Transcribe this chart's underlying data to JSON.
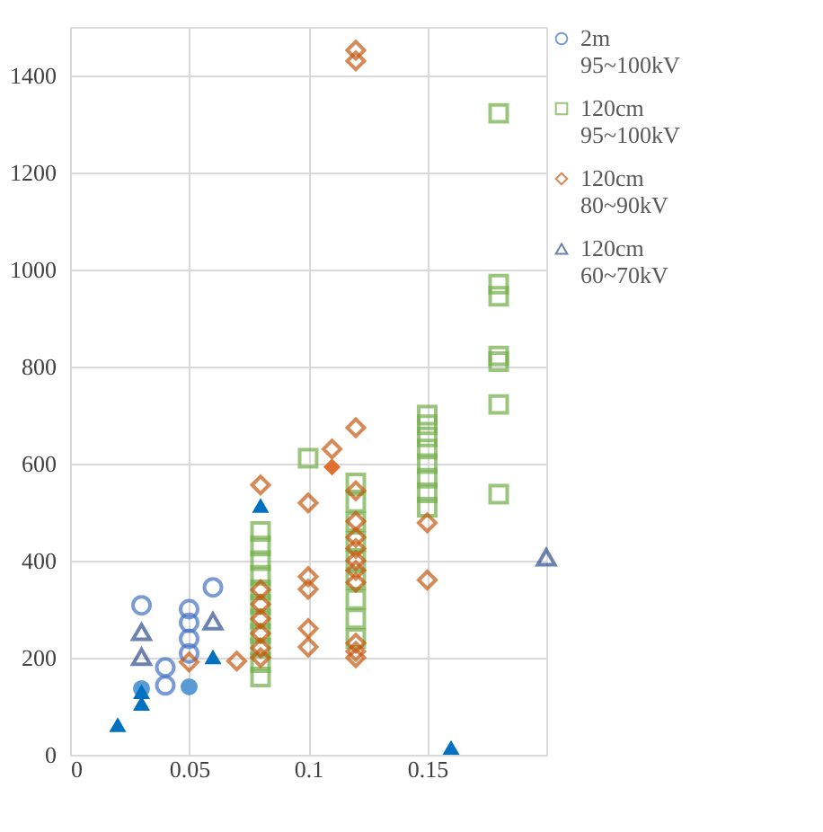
{
  "chart_data": {
    "type": "scatter",
    "xlim": [
      0,
      0.2
    ],
    "xticks": [
      0,
      0.05,
      0.1,
      0.15
    ],
    "ylim": [
      0,
      1500
    ],
    "yticks": [
      0,
      200,
      400,
      600,
      800,
      1000,
      1200,
      1400
    ],
    "grid": true,
    "legend": "top right",
    "series": [
      {
        "name": "2m 95~100kV",
        "color": "#4472c4",
        "marker": "circle",
        "x": [
          0.03,
          0.04,
          0.04,
          0.05,
          0.05,
          0.05,
          0.05,
          0.06
        ],
        "values": [
          308,
          180,
          143,
          300,
          272,
          239,
          209,
          345
        ]
      },
      {
        "name": "120cm 95~100kV",
        "color": "#70ad47",
        "marker": "square",
        "x": [
          0.08,
          0.08,
          0.08,
          0.08,
          0.08,
          0.08,
          0.08,
          0.08,
          0.08,
          0.08,
          0.08,
          0.1,
          0.12,
          0.12,
          0.12,
          0.12,
          0.12,
          0.12,
          0.12,
          0.12,
          0.12,
          0.15,
          0.15,
          0.15,
          0.15,
          0.15,
          0.15,
          0.15,
          0.15,
          0.18,
          0.18,
          0.18,
          0.18,
          0.18,
          0.18,
          0.18
        ],
        "values": [
          460,
          430,
          400,
          370,
          340,
          310,
          280,
          250,
          220,
          190,
          160,
          611,
          560,
          520,
          480,
          440,
          400,
          360,
          320,
          280,
          240,
          700,
          680,
          655,
          630,
          600,
          570,
          540,
          510,
          1322,
          970,
          945,
          822,
          810,
          722,
          537
        ]
      },
      {
        "name": "120cm 80~90kV",
        "color": "#c55a11",
        "marker": "diamond",
        "x": [
          0.05,
          0.07,
          0.08,
          0.08,
          0.08,
          0.08,
          0.08,
          0.08,
          0.08,
          0.1,
          0.1,
          0.1,
          0.1,
          0.1,
          0.11,
          0.12,
          0.12,
          0.12,
          0.12,
          0.12,
          0.12,
          0.12,
          0.12,
          0.12,
          0.12,
          0.12,
          0.12,
          0.12,
          0.15,
          0.15
        ],
        "values": [
          191,
          193,
          556,
          340,
          310,
          280,
          250,
          220,
          200,
          519,
          367,
          341,
          260,
          222,
          630,
          1452,
          1430,
          674,
          544,
          481,
          448,
          425,
          400,
          380,
          355,
          230,
          213,
          200,
          478,
          360
        ]
      },
      {
        "name": "120cm 60~70kV",
        "color": "#2e4f8f",
        "marker": "triangle",
        "x": [
          0.03,
          0.03,
          0.06,
          0.2
        ],
        "values": [
          253,
          202,
          275,
          407
        ]
      },
      {
        "color": "#5b9bd5",
        "marker": "circle",
        "x": [
          0.03,
          0.05
        ],
        "values": [
          136,
          140
        ]
      },
      {
        "color": "#0070c0",
        "marker": "triangle",
        "x": [
          0.02,
          0.03,
          0.03,
          0.06,
          0.08,
          0.16
        ],
        "values": [
          62,
          106,
          130,
          202,
          514,
          15
        ]
      },
      {
        "color": "#e07030",
        "marker": "diamond",
        "x": [
          0.11
        ],
        "values": [
          593
        ]
      }
    ]
  }
}
